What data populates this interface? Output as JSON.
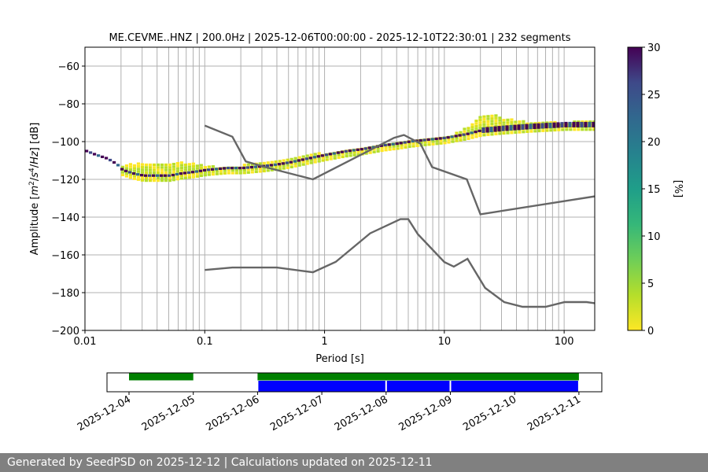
{
  "footer": "Generated by SeedPSD on 2025-12-12 | Calculations updated on 2025-12-11",
  "colors": {
    "noise_model": "#666666",
    "grid": "#b0b0b0",
    "bar_green": "#008000",
    "bar_blue": "#0000ff",
    "footer_bg": "#808080"
  },
  "chart_data": [
    {
      "type": "heatmap",
      "title": "ME.CEVME..HNZ | 200.0Hz | 2025-12-06T00:00:00 - 2025-12-10T22:30:01 | 232 segments",
      "xlabel": "Period [s]",
      "ylabel_parts": [
        "Amplitude [",
        "m",
        "2",
        "/",
        "s",
        "4",
        "/",
        "Hz",
        "] [dB]"
      ],
      "x_scale": "log",
      "xlim": [
        0.01,
        180
      ],
      "ylim": [
        -200,
        -50
      ],
      "grid": true,
      "x_ticks": [
        {
          "value": 0.01,
          "label": "0.01"
        },
        {
          "value": 0.1,
          "label": "0.1"
        },
        {
          "value": 1,
          "label": "1"
        },
        {
          "value": 10,
          "label": "10"
        },
        {
          "value": 100,
          "label": "100"
        }
      ],
      "y_ticks": [
        -60,
        -80,
        -100,
        -120,
        -140,
        -160,
        -180,
        -200
      ],
      "colorbar": {
        "label": "[%]",
        "range": [
          0,
          30
        ],
        "ticks": [
          0,
          5,
          10,
          15,
          20,
          25,
          30
        ],
        "colormap": "viridis"
      },
      "ppsd_mode": {
        "period": [
          0.01,
          0.012,
          0.015,
          0.018,
          0.02,
          0.025,
          0.03,
          0.04,
          0.05,
          0.06,
          0.08,
          0.1,
          0.15,
          0.2,
          0.3,
          0.4,
          0.5,
          0.7,
          1,
          1.5,
          2,
          3,
          4,
          5,
          7,
          10,
          15,
          20,
          30,
          50,
          100,
          180
        ],
        "db": [
          -105,
          -107,
          -109,
          -112,
          -115,
          -117,
          -118,
          -118,
          -118,
          -117,
          -116,
          -115,
          -114,
          -114,
          -113,
          -112,
          -111,
          -109,
          -107,
          -105,
          -104,
          -102,
          -101,
          -100,
          -99,
          -98,
          -96,
          -94,
          -93,
          -92,
          -91,
          -91
        ]
      },
      "ppsd_spread": {
        "period": [
          0.02,
          0.025,
          0.04,
          0.06,
          0.08,
          0.1,
          0.15,
          5,
          10,
          15,
          20,
          25,
          30,
          50,
          100,
          180
        ],
        "db": [
          -113,
          -112,
          -112,
          -111,
          -112,
          -113,
          -114,
          -99,
          -98,
          -93,
          -86,
          -86,
          -88,
          -90,
          -90,
          -89
        ]
      },
      "noise_models": [
        {
          "period": [
            0.1,
            0.17,
            0.22,
            0.32,
            0.8,
            3.8,
            4.6,
            6.3,
            7.9,
            15.4,
            20,
            180
          ],
          "db": [
            -91.5,
            -97.4,
            -110.5,
            -113.5,
            -120,
            -98,
            -96.5,
            -101,
            -113.5,
            -120,
            -138.5,
            -129
          ]
        },
        {
          "period": [
            0.1,
            0.17,
            0.4,
            0.8,
            1.24,
            2.4,
            4.3,
            5.0,
            6.0,
            10,
            12,
            15.6,
            21.9,
            31.6,
            45,
            70,
            101,
            154,
            180
          ],
          "db": [
            -168,
            -166.7,
            -166.7,
            -169.2,
            -163.7,
            -148.6,
            -141.1,
            -141.1,
            -149,
            -163.8,
            -166.2,
            -162.1,
            -177.5,
            -185,
            -187.5,
            -187.5,
            -185,
            -185,
            -185.6
          ]
        }
      ]
    },
    {
      "type": "timeline",
      "x_ticks": [
        "2025-12-04",
        "2025-12-05",
        "2025-12-06",
        "2025-12-07",
        "2025-12-08",
        "2025-12-09",
        "2025-12-10",
        "2025-12-11"
      ],
      "green_bars": [
        [
          "2025-12-04",
          "2025-12-05"
        ],
        [
          "2025-12-06",
          "2025-12-11"
        ]
      ],
      "blue_bars": [
        [
          "2025-12-06",
          "2025-12-08"
        ],
        [
          "2025-12-08",
          "2025-12-09"
        ],
        [
          "2025-12-09",
          "2025-12-11"
        ]
      ]
    }
  ]
}
